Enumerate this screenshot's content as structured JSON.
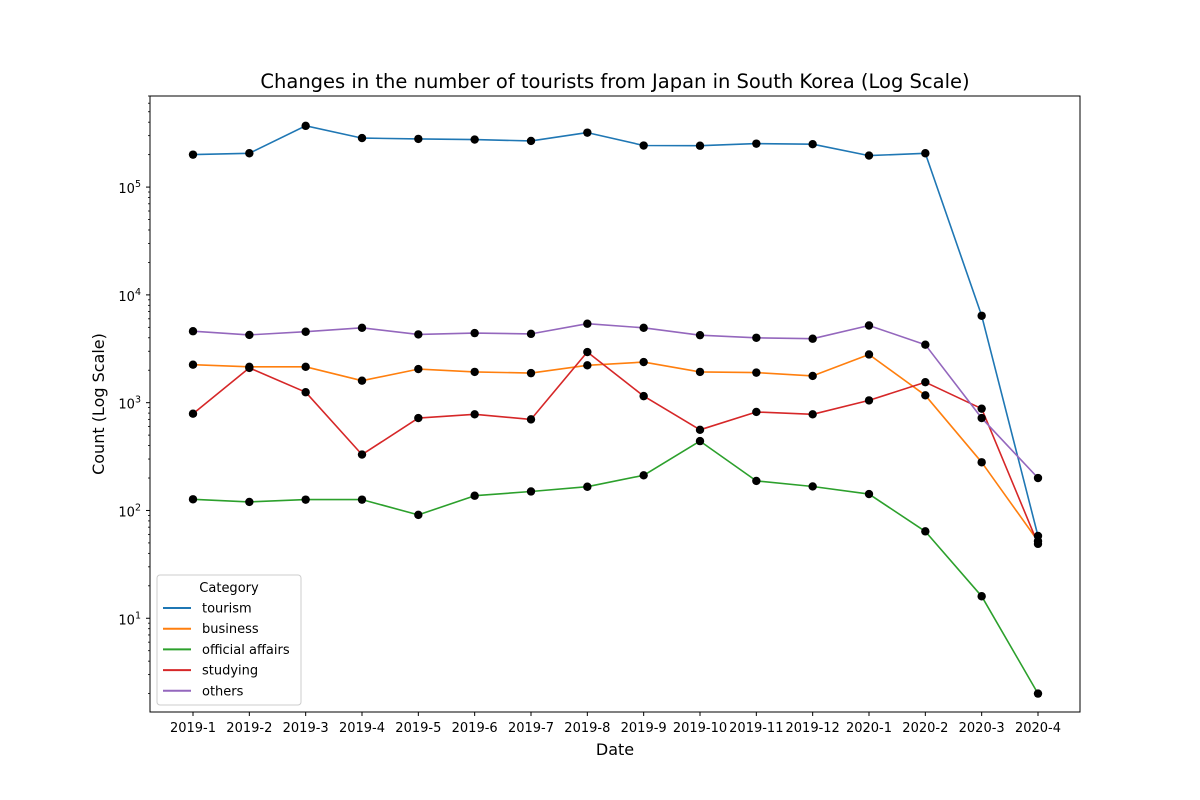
{
  "chart_data": {
    "type": "line",
    "title": "Changes in the number of tourists from Japan in South Korea (Log Scale)",
    "xlabel": "Date",
    "ylabel": "Count (Log Scale)",
    "yscale": "log",
    "ylim": [
      1.35,
      700000
    ],
    "y_ticks": [
      {
        "value": 10,
        "base": "10",
        "exp": "1"
      },
      {
        "value": 100,
        "base": "10",
        "exp": "2"
      },
      {
        "value": 1000,
        "base": "10",
        "exp": "3"
      },
      {
        "value": 10000,
        "base": "10",
        "exp": "4"
      },
      {
        "value": 100000,
        "base": "10",
        "exp": "5"
      }
    ],
    "categories": [
      "2019-1",
      "2019-2",
      "2019-3",
      "2019-4",
      "2019-5",
      "2019-6",
      "2019-7",
      "2019-8",
      "2019-9",
      "2019-10",
      "2019-11",
      "2019-12",
      "2020-1",
      "2020-2",
      "2020-3",
      "2020-4"
    ],
    "legend": {
      "title": "Category",
      "location": "lower-left"
    },
    "grid": false,
    "marker_color": "#000000",
    "series": [
      {
        "name": "tourism",
        "color": "#1f77b4",
        "values": [
          200000,
          206000,
          370000,
          285000,
          280000,
          276000,
          268000,
          320000,
          243000,
          242000,
          253000,
          250000,
          196000,
          206000,
          6400,
          58
        ]
      },
      {
        "name": "business",
        "color": "#ff7f0e",
        "values": [
          2250,
          2150,
          2150,
          1600,
          2050,
          1930,
          1880,
          2220,
          2380,
          1930,
          1900,
          1770,
          2800,
          1170,
          280,
          52
        ]
      },
      {
        "name": "official affairs",
        "color": "#2ca02c",
        "values": [
          127,
          120,
          126,
          126,
          91,
          137,
          150,
          166,
          212,
          440,
          188,
          167,
          142,
          64,
          16,
          2
        ]
      },
      {
        "name": "studying",
        "color": "#d62728",
        "values": [
          790,
          2100,
          1250,
          330,
          720,
          780,
          700,
          2950,
          1150,
          560,
          820,
          780,
          1050,
          1550,
          880,
          49
        ]
      },
      {
        "name": "others",
        "color": "#9467bd",
        "values": [
          4600,
          4250,
          4550,
          4950,
          4300,
          4420,
          4350,
          5400,
          4950,
          4230,
          4000,
          3920,
          5200,
          3450,
          720,
          200
        ]
      }
    ]
  }
}
